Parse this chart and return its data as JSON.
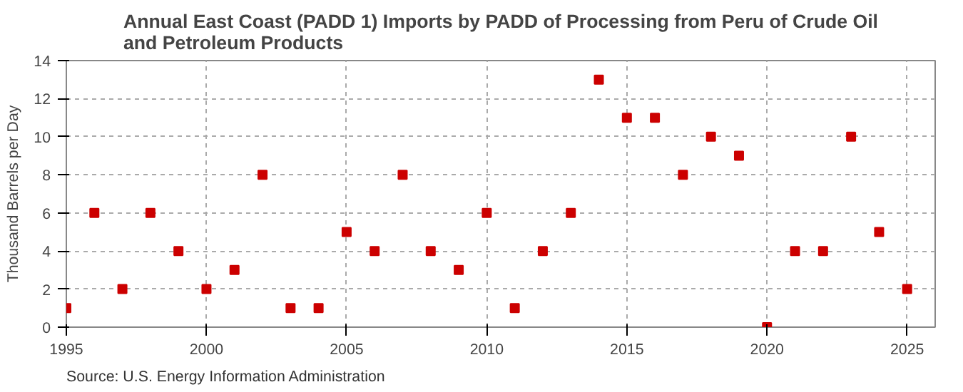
{
  "chart_data": {
    "type": "scatter",
    "title": "Annual East Coast (PADD 1) Imports by PADD of Processing from Peru of Crude Oil and Petroleum Products",
    "ylabel": "Thousand Barrels per Day",
    "x": [
      1995,
      1996,
      1997,
      1998,
      1999,
      2000,
      2001,
      2002,
      2003,
      2004,
      2005,
      2006,
      2007,
      2008,
      2009,
      2010,
      2011,
      2012,
      2013,
      2014,
      2015,
      2016,
      2017,
      2018,
      2019,
      2020,
      2021,
      2022,
      2023,
      2024,
      2025
    ],
    "series": [
      {
        "color": "#cc0000",
        "values": [
          1,
          6,
          2,
          6,
          4,
          2,
          3,
          8,
          1,
          1,
          5,
          4,
          8,
          4,
          3,
          6,
          1,
          4,
          6,
          13,
          11,
          11,
          8,
          10,
          9,
          0,
          4,
          4,
          10,
          5,
          2
        ]
      }
    ],
    "xlim": [
      1995,
      2026
    ],
    "xticks": [
      1995,
      2000,
      2005,
      2010,
      2015,
      2020,
      2025
    ],
    "ylim": [
      0,
      14
    ],
    "yticks": [
      0,
      2,
      4,
      6,
      8,
      10,
      12,
      14
    ],
    "grid": true,
    "marker": "square",
    "annotations": [
      "Source: U.S. Energy Information Administration"
    ]
  }
}
